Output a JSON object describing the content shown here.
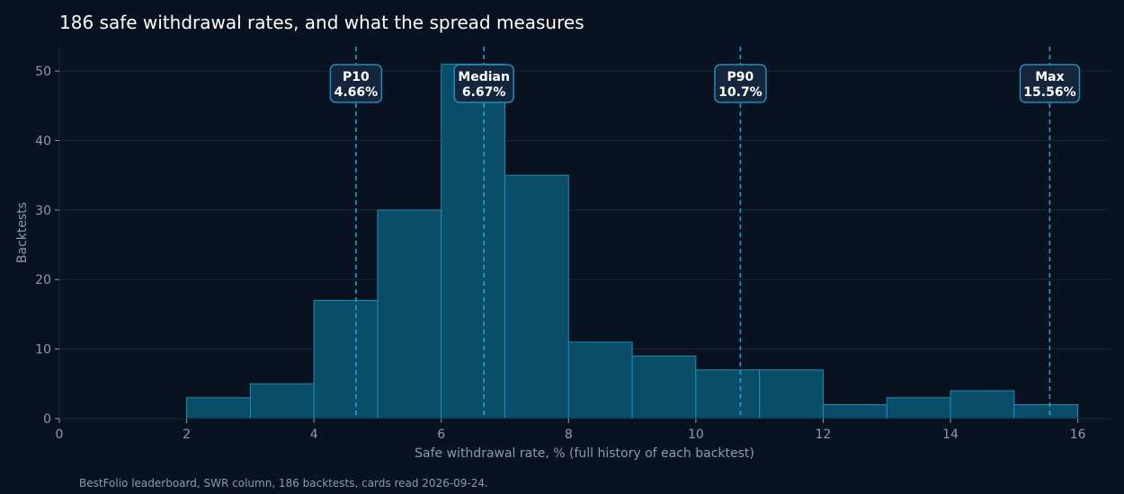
{
  "chart_data": {
    "type": "bar",
    "title": "186 safe withdrawal rates, and what the spread measures",
    "xlabel": "Safe withdrawal rate, % (full history of each backtest)",
    "ylabel": "Backtests",
    "xlim": [
      0,
      16.5
    ],
    "ylim": [
      0,
      53.5
    ],
    "xticks": [
      0,
      2,
      4,
      6,
      8,
      10,
      12,
      14,
      16
    ],
    "yticks": [
      0,
      10,
      20,
      30,
      40,
      50
    ],
    "grid": "horizontal",
    "bins": [
      {
        "x0": 2,
        "x1": 3,
        "count": 3
      },
      {
        "x0": 3,
        "x1": 4,
        "count": 5
      },
      {
        "x0": 4,
        "x1": 5,
        "count": 17
      },
      {
        "x0": 5,
        "x1": 6,
        "count": 30
      },
      {
        "x0": 6,
        "x1": 7,
        "count": 51
      },
      {
        "x0": 7,
        "x1": 8,
        "count": 35
      },
      {
        "x0": 8,
        "x1": 9,
        "count": 11
      },
      {
        "x0": 9,
        "x1": 10,
        "count": 9
      },
      {
        "x0": 10,
        "x1": 11,
        "count": 7
      },
      {
        "x0": 11,
        "x1": 12,
        "count": 7
      },
      {
        "x0": 12,
        "x1": 13,
        "count": 2
      },
      {
        "x0": 13,
        "x1": 14,
        "count": 3
      },
      {
        "x0": 14,
        "x1": 15,
        "count": 4
      },
      {
        "x0": 15,
        "x1": 16,
        "count": 2
      }
    ],
    "markers": [
      {
        "label": "P10",
        "value_label": "4.66%",
        "x": 4.66
      },
      {
        "label": "Median",
        "value_label": "6.67%",
        "x": 6.67
      },
      {
        "label": "P90",
        "value_label": "10.7%",
        "x": 10.7
      },
      {
        "label": "Max",
        "value_label": "15.56%",
        "x": 15.56
      }
    ],
    "footnote": "BestFolio leaderboard, SWR column, 186 backtests, cards read 2026-09-24.",
    "colors": {
      "background": "#081221",
      "bar_fill": "#0b4d69",
      "bar_edge": "#1a8db5",
      "marker_line": "#1fa3d1",
      "marker_box_fill": "#14253d",
      "marker_box_edge": "#1f8fb8",
      "grid": "#16263a",
      "text_muted": "#8a9bb0",
      "text_bright": "#ffffff"
    }
  }
}
